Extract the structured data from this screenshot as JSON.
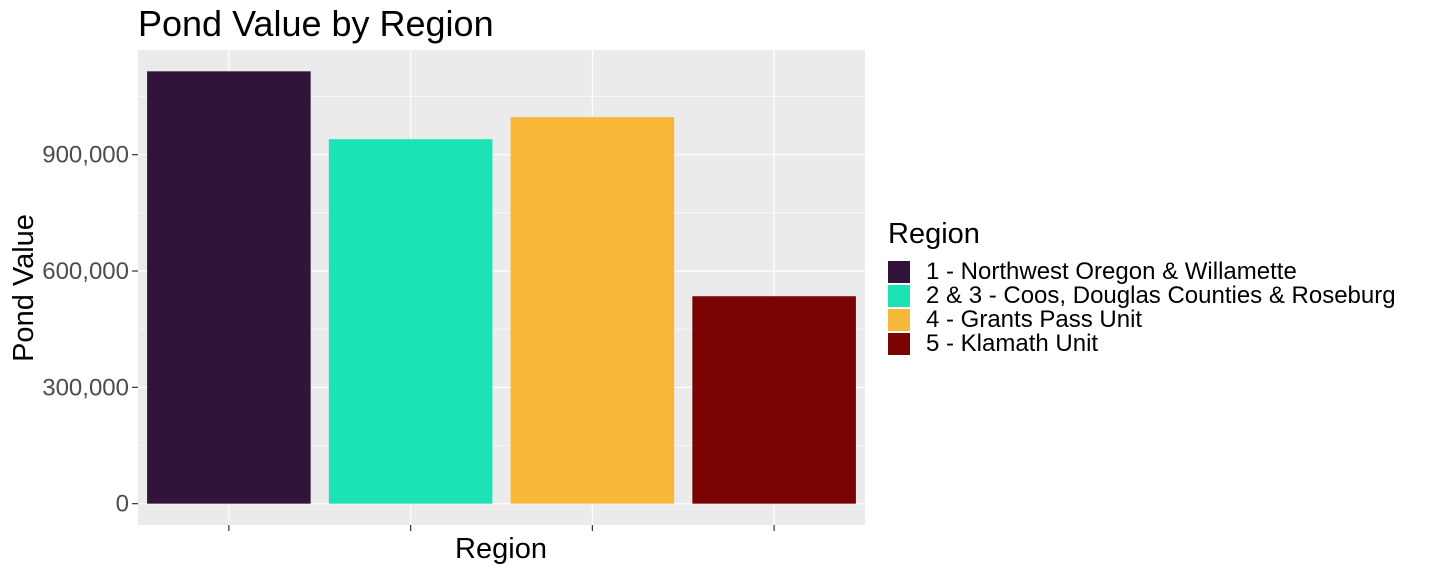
{
  "chart_data": {
    "type": "bar",
    "title": "Pond Value by Region",
    "xlabel": "Region",
    "ylabel": "Pond Value",
    "categories": [
      "1 - Northwest Oregon & Willamette",
      "2 & 3 - Coos, Douglas Counties & Roseburg",
      "4 - Grants Pass Unit",
      "5 - Klamath Unit"
    ],
    "values": [
      1115000,
      940000,
      997000,
      535000
    ],
    "colors": [
      "#32143A",
      "#1CE3B5",
      "#F7B83A",
      "#7A0403"
    ],
    "ylim": [
      -55000,
      1170000
    ],
    "y_ticks": [
      0,
      300000,
      600000,
      900000
    ],
    "y_tick_labels": [
      "0",
      "300,000",
      "600,000",
      "900,000"
    ],
    "x_tick_labels_shown": false,
    "legend": {
      "title": "Region",
      "position": "right"
    },
    "panel_background": "#EBEBEB",
    "grid": true,
    "gridline_color": "#FFFFFF"
  }
}
